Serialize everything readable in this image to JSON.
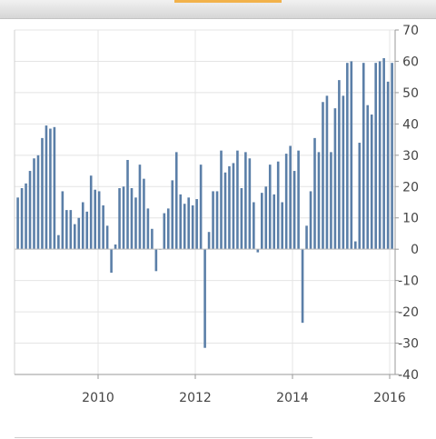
{
  "chart_data": {
    "type": "bar",
    "title": "",
    "xlabel": "",
    "ylabel": "",
    "ylim": [
      -40,
      70
    ],
    "yticks": [
      70,
      60,
      50,
      40,
      30,
      20,
      10,
      0,
      -10,
      -20,
      -30,
      -40
    ],
    "xticks": [
      "2010",
      "2012",
      "2014",
      "2016"
    ],
    "grid": true,
    "legend": "none",
    "bar_color": "#5b7fa8",
    "values": [
      16.5,
      19.5,
      21,
      25,
      29,
      30,
      35.5,
      39.5,
      38.5,
      39,
      4.5,
      18.5,
      12.5,
      12.5,
      8,
      10,
      15,
      12,
      23.5,
      19,
      18.5,
      14,
      7.5,
      -7.5,
      1.5,
      19.5,
      20,
      28.5,
      19.5,
      16.5,
      27,
      22.5,
      13,
      6.5,
      -7,
      0,
      11.5,
      13,
      22,
      31,
      17.5,
      14.5,
      16.5,
      14,
      16,
      27,
      -31.5,
      5.5,
      18.5,
      18.5,
      31.5,
      24.5,
      26.5,
      27.5,
      31.5,
      19.5,
      31,
      29,
      15,
      -1,
      18,
      20,
      27,
      17.5,
      28,
      15,
      30.5,
      33,
      25,
      31.5,
      -23.5,
      7.5,
      18.5,
      35.5,
      31,
      47,
      49,
      31,
      45,
      54,
      49,
      59.5,
      60,
      2.5,
      34,
      59.5,
      46,
      43,
      59.5,
      60,
      61,
      53.5,
      59.5
    ]
  }
}
